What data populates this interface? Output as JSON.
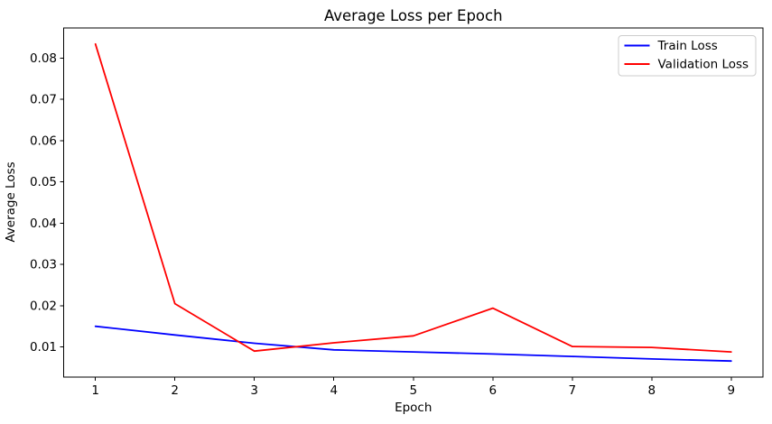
{
  "chart_data": {
    "type": "line",
    "title": "Average Loss per Epoch",
    "xlabel": "Epoch",
    "ylabel": "Average Loss",
    "x": [
      1,
      2,
      3,
      4,
      5,
      6,
      7,
      8,
      9
    ],
    "series": [
      {
        "name": "Train Loss",
        "color": "#0000ff",
        "values": [
          0.015,
          0.0129,
          0.0109,
          0.0093,
          0.0088,
          0.0083,
          0.0077,
          0.0071,
          0.0066
        ]
      },
      {
        "name": "Validation Loss",
        "color": "#ff0000",
        "values": [
          0.0834,
          0.0205,
          0.009,
          0.011,
          0.0127,
          0.0194,
          0.0101,
          0.0099,
          0.0088
        ]
      }
    ],
    "xticks": [
      1,
      2,
      3,
      4,
      5,
      6,
      7,
      8,
      9
    ],
    "yticks": [
      0.01,
      0.02,
      0.03,
      0.04,
      0.05,
      0.06,
      0.07,
      0.08
    ],
    "xlim": [
      0.6,
      9.4
    ],
    "ylim": [
      0.0027,
      0.0873
    ],
    "grid": false,
    "legend": {
      "position": "upper right",
      "entries": [
        "Train Loss",
        "Validation Loss"
      ],
      "border_color": "#cccccc"
    },
    "background_color": "#ffffff",
    "text_color": "#000000"
  }
}
